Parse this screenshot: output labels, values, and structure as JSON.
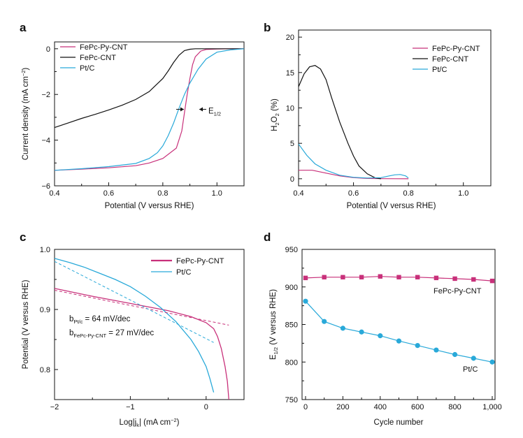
{
  "colors": {
    "fepc_py_cnt": "#c8307a",
    "fepc_cnt": "#111111",
    "pt_c": "#29a9d9"
  },
  "chart_data": [
    {
      "panel": "a",
      "type": "line",
      "xlabel": "Potential (V versus RHE)",
      "ylabel_main": "Current density (mA cm",
      "ylabel_sup": "−2",
      "ylabel_end": ")",
      "xlim": [
        0.4,
        1.1
      ],
      "ylim": [
        -6,
        0.3
      ],
      "xticks": [
        "0.4",
        "0.6",
        "0.8",
        "1.0"
      ],
      "yticks": [
        "0",
        "−2",
        "−4",
        "−6"
      ],
      "legend_position": "top-left",
      "annotation": {
        "main": "E",
        "sub": "1/2"
      },
      "series": [
        {
          "name": "FePc-Py-CNT",
          "color": "#c8307a",
          "x": [
            0.4,
            0.5,
            0.6,
            0.7,
            0.75,
            0.8,
            0.85,
            0.87,
            0.88,
            0.89,
            0.9,
            0.91,
            0.92,
            0.94,
            0.96,
            1.0,
            1.05,
            1.1
          ],
          "y": [
            -5.32,
            -5.27,
            -5.21,
            -5.12,
            -5.0,
            -4.8,
            -4.35,
            -3.6,
            -2.8,
            -2.0,
            -1.3,
            -0.7,
            -0.35,
            -0.1,
            -0.03,
            -0.01,
            0,
            0
          ]
        },
        {
          "name": "FePc-CNT",
          "color": "#111111",
          "x": [
            0.4,
            0.45,
            0.5,
            0.55,
            0.6,
            0.65,
            0.7,
            0.75,
            0.8,
            0.82,
            0.84,
            0.86,
            0.88,
            0.9,
            0.92,
            0.95,
            1.0,
            1.1
          ],
          "y": [
            -3.45,
            -3.25,
            -3.05,
            -2.87,
            -2.68,
            -2.47,
            -2.22,
            -1.87,
            -1.3,
            -0.97,
            -0.6,
            -0.28,
            -0.08,
            -0.02,
            0,
            0,
            0,
            0
          ]
        },
        {
          "name": "Pt/C",
          "color": "#29a9d9",
          "x": [
            0.4,
            0.5,
            0.6,
            0.7,
            0.75,
            0.78,
            0.8,
            0.82,
            0.84,
            0.86,
            0.88,
            0.9,
            0.93,
            0.96,
            1.0,
            1.05,
            1.1
          ],
          "y": [
            -5.32,
            -5.25,
            -5.16,
            -5.02,
            -4.8,
            -4.55,
            -4.25,
            -3.8,
            -3.25,
            -2.6,
            -2.0,
            -1.5,
            -0.9,
            -0.45,
            -0.15,
            -0.05,
            0
          ]
        }
      ]
    },
    {
      "panel": "b",
      "type": "line",
      "xlabel": "Potential (V versus RHE)",
      "ylabel_main": "H",
      "ylabel_sub": "2",
      "ylabel_mid": "O",
      "ylabel_sub2": "2",
      "ylabel_end": " (%)",
      "xlim": [
        0.4,
        1.1
      ],
      "ylim": [
        -1,
        21
      ],
      "xticks": [
        "0.4",
        "0.6",
        "0.8",
        "1.0"
      ],
      "yticks": [
        "0",
        "5",
        "10",
        "15",
        "20"
      ],
      "legend_position": "top-right",
      "series": [
        {
          "name": "FePc-Py-CNT",
          "color": "#c8307a",
          "x": [
            0.4,
            0.45,
            0.5,
            0.55,
            0.6,
            0.65,
            0.7,
            0.75,
            0.8
          ],
          "y": [
            1.2,
            1.2,
            0.8,
            0.4,
            0.15,
            0.05,
            0.02,
            0.01,
            0
          ]
        },
        {
          "name": "FePc-CNT",
          "color": "#111111",
          "x": [
            0.4,
            0.42,
            0.44,
            0.46,
            0.48,
            0.5,
            0.52,
            0.55,
            0.58,
            0.6,
            0.62,
            0.65,
            0.68,
            0.7
          ],
          "y": [
            13,
            14.8,
            15.8,
            16,
            15.5,
            14,
            11.5,
            8,
            5,
            3.2,
            1.8,
            0.7,
            0.1,
            0
          ]
        },
        {
          "name": "Pt/C",
          "color": "#29a9d9",
          "x": [
            0.4,
            0.43,
            0.46,
            0.5,
            0.55,
            0.6,
            0.65,
            0.7,
            0.73,
            0.75,
            0.77,
            0.79,
            0.8
          ],
          "y": [
            4.9,
            3.3,
            2.1,
            1.2,
            0.5,
            0.2,
            0.1,
            0.15,
            0.4,
            0.55,
            0.6,
            0.4,
            0.1
          ]
        }
      ]
    },
    {
      "panel": "c",
      "type": "line",
      "xlabel_main": "Log|j",
      "xlabel_sub": "k",
      "xlabel_end": "| (mA cm",
      "xlabel_sup": "−2",
      "xlabel_close": ")",
      "ylabel": "Potential (V versus RHE)",
      "xlim": [
        -2,
        0.5
      ],
      "ylim": [
        0.75,
        1.0
      ],
      "xticks": [
        "−2",
        "−1",
        "0"
      ],
      "yticks": [
        "1.0",
        "0.9",
        "0.8"
      ],
      "legend_position": "top-right",
      "annotations": [
        {
          "main": "b",
          "sub": "Pt/c",
          "rest": " = 64 mV/dec"
        },
        {
          "main": "b",
          "sub": "FePc-Py-CNT",
          "rest": " = 27 mV/dec"
        }
      ],
      "series": [
        {
          "name": "FePc-Py-CNT",
          "color": "#c8307a",
          "x": [
            -2,
            -1.5,
            -1,
            -0.5,
            -0.2,
            0,
            0.1,
            0.15,
            0.2,
            0.25,
            0.28,
            0.3
          ],
          "y": [
            0.935,
            0.922,
            0.91,
            0.898,
            0.888,
            0.878,
            0.868,
            0.855,
            0.835,
            0.805,
            0.78,
            0.75
          ]
        },
        {
          "name": "Pt/C",
          "color": "#29a9d9",
          "x": [
            -2,
            -1.8,
            -1.6,
            -1.4,
            -1.2,
            -1,
            -0.8,
            -0.6,
            -0.4,
            -0.2,
            -0.1,
            0,
            0.05,
            0.1
          ],
          "y": [
            0.985,
            0.978,
            0.97,
            0.96,
            0.95,
            0.938,
            0.922,
            0.903,
            0.88,
            0.85,
            0.83,
            0.805,
            0.785,
            0.762
          ]
        }
      ],
      "fits": [
        {
          "color": "#c8307a",
          "x": [
            -2,
            0.3
          ],
          "y": [
            0.932,
            0.874
          ]
        },
        {
          "color": "#29a9d9",
          "x": [
            -2,
            0.1
          ],
          "y": [
            0.98,
            0.845
          ]
        }
      ]
    },
    {
      "panel": "d",
      "type": "scatter",
      "xlabel": "Cycle number",
      "ylabel_main": "E",
      "ylabel_sub": "1/2",
      "ylabel_end": " (V versus RHE)",
      "xlim": [
        0,
        1000
      ],
      "ylim": [
        750,
        950
      ],
      "xticks": [
        "0",
        "200",
        "400",
        "600",
        "800",
        "1,000"
      ],
      "yticks": [
        "750",
        "800",
        "850",
        "900",
        "950"
      ],
      "series": [
        {
          "name": "FePc-Py-CNT",
          "color": "#c8307a",
          "marker": "square",
          "x": [
            0,
            100,
            200,
            300,
            400,
            500,
            600,
            700,
            800,
            900,
            1000
          ],
          "y": [
            912,
            913,
            913,
            913,
            914,
            913,
            913,
            912,
            911,
            910,
            908
          ]
        },
        {
          "name": "Pt/C",
          "color": "#29a9d9",
          "marker": "circle",
          "x": [
            0,
            100,
            200,
            300,
            400,
            500,
            600,
            700,
            800,
            900,
            1000
          ],
          "y": [
            881,
            854,
            845,
            840,
            835,
            828,
            822,
            816,
            810,
            805,
            800
          ]
        }
      ]
    }
  ]
}
